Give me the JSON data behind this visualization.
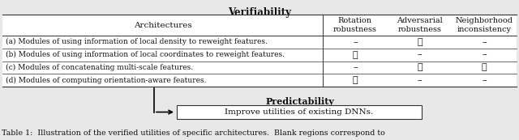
{
  "title_top": "Verifiability",
  "title_bottom": "Predictability",
  "box_text": "Improve utilities of existing DNNs.",
  "caption": "Table 1:  Illustration of the verified utilities of specific architectures.  Blank regions correspond to",
  "col_header_arch": "Architectures",
  "col_headers": [
    "Rotation\nrobustness",
    "Adversarial\nrobustness",
    "Neighborhood\ninconsistency"
  ],
  "rows": [
    "(a) Modules of using information of local density to reweight features.",
    "(b) Modules of using information of local coordinates to reweight features.",
    "(c) Modules of concatenating multi-scale features.",
    "(d) Modules of computing orientation-aware features."
  ],
  "checkmarks": [
    [
      false,
      true,
      false
    ],
    [
      true,
      false,
      false
    ],
    [
      false,
      true,
      true
    ],
    [
      true,
      false,
      false
    ]
  ],
  "bg_color": "#e8e8e8",
  "border_color": "#333333",
  "text_color": "#111111"
}
